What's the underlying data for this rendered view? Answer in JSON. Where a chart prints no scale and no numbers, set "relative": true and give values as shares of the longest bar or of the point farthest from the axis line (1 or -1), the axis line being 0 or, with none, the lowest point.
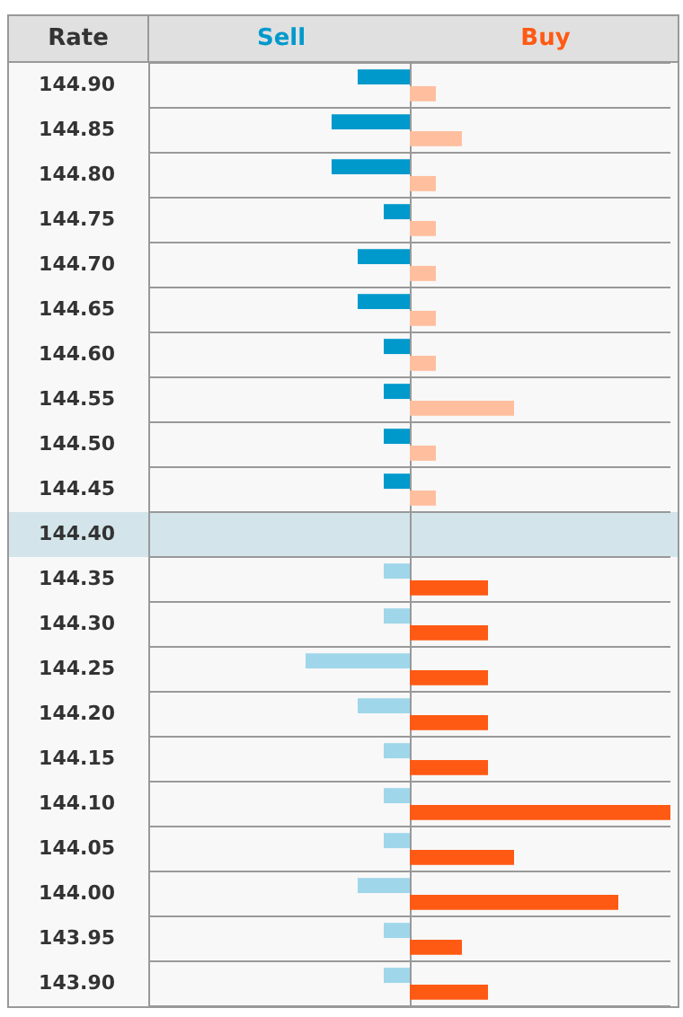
{
  "chart_data": {
    "type": "bar",
    "orientation": "horizontal",
    "relative": true,
    "ylabel": "Rate",
    "grid": "y",
    "legend": false,
    "categories": [
      "144.90",
      "144.85",
      "144.80",
      "144.75",
      "144.70",
      "144.65",
      "144.60",
      "144.55",
      "144.50",
      "144.45",
      "144.40",
      "144.35",
      "144.30",
      "144.25",
      "144.20",
      "144.15",
      "144.10",
      "144.05",
      "144.00",
      "143.95",
      "143.90"
    ],
    "series": [
      {
        "name": "Sell",
        "color": "#0099cc",
        "values": [
          -0.2,
          -0.3,
          -0.3,
          -0.1,
          -0.2,
          -0.2,
          -0.1,
          -0.1,
          -0.1,
          -0.1,
          null,
          -0.1,
          -0.1,
          -0.4,
          -0.2,
          -0.1,
          -0.1,
          -0.1,
          -0.2,
          -0.1,
          -0.1
        ],
        "colors": [
          "#0099cc",
          "#0099cc",
          "#0099cc",
          "#0099cc",
          "#0099cc",
          "#0099cc",
          "#0099cc",
          "#0099cc",
          "#0099cc",
          "#0099cc",
          "#0099cc",
          "#9fd6ea",
          "#9fd6ea",
          "#9fd6ea",
          "#9fd6ea",
          "#9fd6ea",
          "#9fd6ea",
          "#9fd6ea",
          "#9fd6ea",
          "#9fd6ea",
          "#9fd6ea"
        ]
      },
      {
        "name": "Buy",
        "color": "#ff5a14",
        "values": [
          0.1,
          0.2,
          0.1,
          0.1,
          0.1,
          0.1,
          0.1,
          0.4,
          0.1,
          0.1,
          null,
          0.3,
          0.3,
          0.3,
          0.3,
          0.3,
          1,
          0.4,
          0.8,
          0.2,
          0.3
        ],
        "colors": [
          "#ffbf9f",
          "#ffbf9f",
          "#ffbf9f",
          "#ffbf9f",
          "#ffbf9f",
          "#ffbf9f",
          "#ffbf9f",
          "#ffbf9f",
          "#ffbf9f",
          "#ffbf9f",
          "#ff5a14",
          "#ff5a14",
          "#ff5a14",
          "#ff5a14",
          "#ff5a14",
          "#ff5a14",
          "#ff5a14",
          "#ff5a14",
          "#ff5a14",
          "#ff5a14",
          "#ff5a14"
        ]
      }
    ],
    "bands": [
      {
        "axis": "y",
        "from": "144.40",
        "to": "144.40",
        "color": "#d3e5ea"
      }
    ]
  }
}
